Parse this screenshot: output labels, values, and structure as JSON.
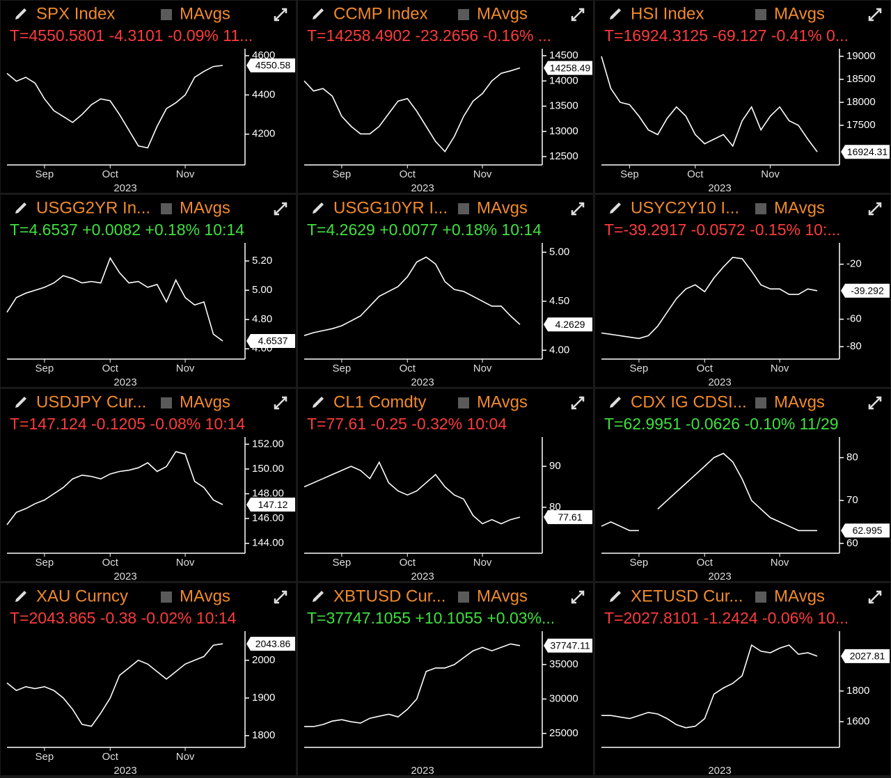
{
  "chart_data": [
    {
      "type": "line",
      "title": "SPX Index",
      "legend_label": "MAvgs",
      "quote": "T=4550.5801 -4.3101 -0.09% 11...",
      "quote_color": "#ff3b3b",
      "color": "#ffffff",
      "last_label": "4550.58",
      "xlabel": "2023",
      "categories": [
        null,
        null,
        null,
        null,
        "Sep",
        null,
        null,
        null,
        null,
        null,
        null,
        "Oct",
        null,
        null,
        null,
        null,
        null,
        null,
        null,
        "Nov",
        null,
        null,
        null,
        null
      ],
      "values": [
        4510,
        4470,
        4490,
        4460,
        4380,
        4320,
        4290,
        4260,
        4300,
        4350,
        4380,
        4370,
        4300,
        4220,
        4140,
        4130,
        4240,
        4330,
        4360,
        4400,
        4490,
        4520,
        4545,
        4550.58
      ],
      "ylim": [
        4043,
        4618
      ],
      "yticks": [
        4200,
        4400,
        4600
      ]
    },
    {
      "type": "line",
      "title": "CCMP Index",
      "legend_label": "MAvgs",
      "quote": "T=14258.4902 -23.2656 -0.16% ...",
      "quote_color": "#ff3b3b",
      "color": "#ffffff",
      "last_label": "14258.49",
      "xlabel": "2023",
      "categories": [
        null,
        null,
        null,
        null,
        "Sep",
        null,
        null,
        null,
        null,
        null,
        null,
        "Oct",
        null,
        null,
        null,
        null,
        null,
        null,
        null,
        "Nov",
        null,
        null,
        null,
        null
      ],
      "values": [
        14000,
        13800,
        13850,
        13700,
        13300,
        13100,
        12950,
        12950,
        13100,
        13350,
        13600,
        13650,
        13400,
        13100,
        12800,
        12600,
        12900,
        13300,
        13600,
        13750,
        14000,
        14150,
        14200,
        14258.49
      ],
      "ylim": [
        12335,
        14570
      ],
      "yticks": [
        12500,
        13000,
        13500,
        14000,
        14500
      ]
    },
    {
      "type": "line",
      "title": "HSI Index",
      "legend_label": "MAvgs",
      "quote": "T=16924.3125 -69.127 -0.41% 0...",
      "quote_color": "#ff3b3b",
      "color": "#ffffff",
      "last_label": "16924.31",
      "xlabel": "2023",
      "categories": [
        null,
        null,
        null,
        "Sep",
        null,
        null,
        null,
        null,
        null,
        null,
        "Oct",
        null,
        null,
        null,
        null,
        null,
        null,
        null,
        "Nov",
        null,
        null,
        null,
        null,
        null
      ],
      "values": [
        19000,
        18300,
        18000,
        17950,
        17700,
        17400,
        17300,
        17650,
        17900,
        17700,
        17300,
        17100,
        17200,
        17300,
        17050,
        17600,
        17900,
        17400,
        17700,
        17900,
        17600,
        17500,
        17200,
        16924.31
      ],
      "ylim": [
        16640,
        19090
      ],
      "yticks": [
        17500,
        18000,
        18500,
        19000
      ]
    },
    {
      "type": "line",
      "title": "USGG2YR In...",
      "legend_label": "MAvgs",
      "quote": "T=4.6537 +0.0082 +0.18% 10:14",
      "quote_color": "#3fe03f",
      "color": "#ffffff",
      "last_label": "4.6537",
      "xlabel": "2023",
      "categories": [
        null,
        null,
        null,
        null,
        "Sep",
        null,
        null,
        null,
        null,
        null,
        null,
        "Oct",
        null,
        null,
        null,
        null,
        null,
        null,
        null,
        "Nov",
        null,
        null,
        null,
        null
      ],
      "values": [
        4.85,
        4.95,
        4.98,
        5.0,
        5.02,
        5.05,
        5.1,
        5.08,
        5.05,
        5.06,
        5.05,
        5.22,
        5.12,
        5.05,
        5.06,
        5.02,
        5.04,
        4.92,
        5.07,
        4.95,
        4.9,
        4.92,
        4.7,
        4.6537
      ],
      "ylim": [
        4.53,
        5.3
      ],
      "yticks": [
        {
          "value": 4.6,
          "label": "4.60"
        },
        {
          "value": 4.8,
          "label": "4.80"
        },
        {
          "value": 5,
          "label": "5.00"
        },
        {
          "value": 5.2,
          "label": "5.20"
        }
      ]
    },
    {
      "type": "line",
      "title": "USGG10YR I...",
      "legend_label": "MAvgs",
      "quote": "T=4.2629 +0.0077 +0.18% 10:14",
      "quote_color": "#3fe03f",
      "color": "#ffffff",
      "last_label": "4.2629",
      "xlabel": "2023",
      "categories": [
        null,
        null,
        null,
        null,
        "Sep",
        null,
        null,
        null,
        null,
        null,
        null,
        "Oct",
        null,
        null,
        null,
        null,
        null,
        null,
        null,
        "Nov",
        null,
        null,
        null,
        null
      ],
      "values": [
        4.15,
        4.18,
        4.2,
        4.22,
        4.25,
        4.3,
        4.35,
        4.45,
        4.55,
        4.6,
        4.65,
        4.75,
        4.9,
        4.95,
        4.88,
        4.7,
        4.62,
        4.6,
        4.55,
        4.5,
        4.45,
        4.45,
        4.35,
        4.2629
      ],
      "ylim": [
        3.91,
        5.06
      ],
      "yticks": [
        {
          "value": 4,
          "label": "4.00"
        },
        {
          "value": 4.5,
          "label": "4.50"
        },
        {
          "value": 5,
          "label": "5.00"
        }
      ]
    },
    {
      "type": "line",
      "title": "USYC2Y10 I...",
      "legend_label": "MAvgs",
      "quote": "T=-39.2917 -0.0572 -0.15% 10:...",
      "quote_color": "#ff3b3b",
      "color": "#ffffff",
      "last_label": "-39.292",
      "xlabel": "2023",
      "categories": [
        null,
        null,
        null,
        null,
        "Sep",
        null,
        null,
        null,
        null,
        null,
        null,
        "Oct",
        null,
        null,
        null,
        null,
        null,
        null,
        null,
        "Nov",
        null,
        null,
        null,
        null
      ],
      "values": [
        -70,
        -71,
        -72,
        -73,
        -74,
        -72,
        -65,
        -55,
        -45,
        -38,
        -35,
        -40,
        -30,
        -22,
        -15,
        -16,
        -25,
        -35,
        -38,
        -38,
        -42,
        -42,
        -38,
        -39.292
      ],
      "ylim": [
        -89,
        -7
      ],
      "yticks": [
        -80,
        -60,
        -20
      ]
    },
    {
      "type": "line",
      "title": "USDJPY Cur...",
      "legend_label": "MAvgs",
      "quote": "T=147.124 -0.1205 -0.08% 10:14",
      "quote_color": "#ff3b3b",
      "color": "#ffffff",
      "last_label": "147.12",
      "xlabel": "2023",
      "categories": [
        null,
        null,
        null,
        null,
        "Sep",
        null,
        null,
        null,
        null,
        null,
        null,
        "Oct",
        null,
        null,
        null,
        null,
        null,
        null,
        null,
        "Nov",
        null,
        null,
        null,
        null
      ],
      "values": [
        145.5,
        146.5,
        146.8,
        147.2,
        147.5,
        148,
        148.5,
        149.2,
        149.5,
        149.4,
        149.2,
        149.6,
        149.8,
        149.9,
        150.1,
        150.5,
        149.8,
        150.2,
        151.4,
        151.2,
        149,
        148.5,
        147.5,
        147.124
      ],
      "ylim": [
        143.2,
        152.3
      ],
      "yticks": [
        {
          "value": 144,
          "label": "144.00"
        },
        {
          "value": 146,
          "label": "146.00"
        },
        {
          "value": 148,
          "label": "148.00"
        },
        {
          "value": 150,
          "label": "150.00"
        },
        {
          "value": 152,
          "label": "152.00"
        }
      ]
    },
    {
      "type": "line",
      "title": "CL1 Comdty",
      "legend_label": "MAvgs",
      "quote": "T=77.61 -0.25 -0.32% 10:04",
      "quote_color": "#ff3b3b",
      "color": "#ffffff",
      "last_label": "77.61",
      "xlabel": "2023",
      "categories": [
        null,
        null,
        null,
        null,
        "Sep",
        null,
        null,
        null,
        null,
        null,
        null,
        "Oct",
        null,
        null,
        null,
        null,
        null,
        null,
        null,
        "Nov",
        null,
        null,
        null,
        null
      ],
      "values": [
        85,
        86,
        87,
        88,
        89,
        90,
        89,
        87,
        91,
        86,
        84,
        83,
        84,
        86,
        88,
        85,
        83,
        82,
        78,
        76,
        77,
        76,
        77,
        77.61
      ],
      "ylim": [
        68.8,
        96.3
      ],
      "yticks": [
        80,
        90
      ]
    },
    {
      "type": "line",
      "title": "CDX IG CDSI...",
      "legend_label": "MAvgs",
      "quote": "T=62.9951 -0.0626 -0.10% 11/29",
      "quote_color": "#3fe03f",
      "color": "#ffffff",
      "last_label": "62.995",
      "xlabel": "2023",
      "categories": [
        null,
        null,
        null,
        null,
        "Sep",
        null,
        null,
        null,
        null,
        null,
        null,
        "Oct",
        null,
        null,
        null,
        null,
        null,
        null,
        null,
        "Nov",
        null,
        null,
        null,
        null
      ],
      "values": [
        64,
        65,
        64,
        63,
        63,
        null,
        68,
        70,
        72,
        74,
        76,
        78,
        80,
        81,
        79,
        75,
        70,
        68,
        66,
        65,
        64,
        63,
        63,
        62.995
      ],
      "ylim": [
        57.7,
        84
      ],
      "yticks": [
        60,
        70,
        80
      ]
    },
    {
      "type": "line",
      "title": "XAU Curncy",
      "legend_label": "MAvgs",
      "quote": "T=2043.865 -0.38 -0.02% 10:14",
      "quote_color": "#ff3b3b",
      "color": "#ffffff",
      "last_label": "2043.86",
      "xlabel": "2023",
      "categories": [
        null,
        null,
        null,
        null,
        "Sep",
        null,
        null,
        null,
        null,
        null,
        null,
        "Oct",
        null,
        null,
        null,
        null,
        null,
        null,
        null,
        "Nov",
        null,
        null,
        null,
        null
      ],
      "values": [
        1940,
        1920,
        1930,
        1925,
        1930,
        1920,
        1900,
        1870,
        1830,
        1825,
        1860,
        1900,
        1960,
        1980,
        2000,
        1990,
        1970,
        1950,
        1970,
        1990,
        2000,
        2010,
        2040,
        2043.865
      ],
      "ylim": [
        1769,
        2068
      ],
      "yticks": [
        1800,
        1900,
        2000
      ]
    },
    {
      "type": "line",
      "title": "XBTUSD Cur...",
      "legend_label": "MAvgs",
      "quote": "T=37747.1055 +10.1055 +0.03%...",
      "quote_color": "#3fe03f",
      "color": "#ffffff",
      "last_label": "37747.11",
      "xlabel": "2023",
      "categories": [
        null,
        null,
        null,
        null,
        null,
        null,
        null,
        null,
        null,
        null,
        null,
        null,
        null,
        null,
        null,
        null,
        null,
        null,
        null,
        null,
        null,
        null,
        null,
        null
      ],
      "values": [
        26000,
        26000,
        26300,
        26800,
        27000,
        26700,
        26500,
        27200,
        27500,
        27800,
        27400,
        28500,
        30000,
        34000,
        34500,
        34500,
        35000,
        36000,
        37000,
        37500,
        37000,
        37500,
        38000,
        37747.11
      ],
      "ylim": [
        22980,
        39340
      ],
      "yticks": [
        25000,
        30000,
        35000
      ]
    },
    {
      "type": "line",
      "title": "XETUSD Cur...",
      "legend_label": "MAvgs",
      "quote": "T=2027.8101 -1.2424 -0.06% 10...",
      "quote_color": "#ff3b3b",
      "color": "#ffffff",
      "last_label": "2027.81",
      "xlabel": "2023",
      "categories": [
        null,
        null,
        null,
        null,
        null,
        null,
        null,
        null,
        null,
        null,
        null,
        null,
        null,
        null,
        null,
        null,
        null,
        null,
        null,
        null,
        null,
        null,
        null,
        null
      ],
      "values": [
        1640,
        1640,
        1630,
        1620,
        1640,
        1660,
        1650,
        1620,
        1580,
        1560,
        1570,
        1620,
        1780,
        1820,
        1850,
        1900,
        2100,
        2060,
        2050,
        2080,
        2100,
        2040,
        2050,
        2027.81
      ],
      "ylim": [
        1432,
        2168
      ],
      "yticks": [
        1600,
        1800
      ]
    }
  ]
}
